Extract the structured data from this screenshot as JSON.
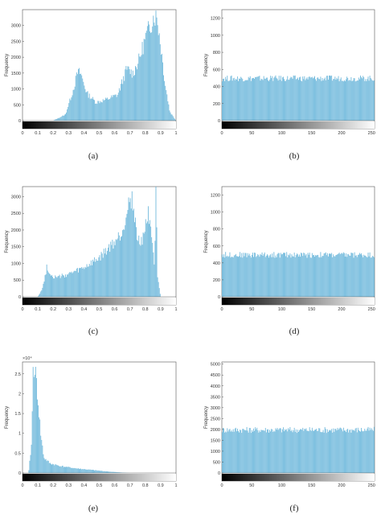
{
  "chart_data": [
    {
      "id": "a",
      "type": "bar",
      "caption": "(a)",
      "ylabel": "Frequency",
      "xlabel": "",
      "xlim": [
        0,
        1
      ],
      "ylim": [
        0,
        3500
      ],
      "xticks": [
        "0",
        "0.1",
        "0.2",
        "0.3",
        "0.4",
        "0.5",
        "0.6",
        "0.7",
        "0.8",
        "0.9",
        "1"
      ],
      "yticks": [
        "0",
        "500",
        "1000",
        "1500",
        "2000",
        "2500",
        "3000"
      ],
      "exponent": "",
      "colorbar": "black-to-white gradient",
      "bar_color": "#5aaed6",
      "series": [
        {
          "x": [
            0.0,
            0.2,
            0.28,
            0.33,
            0.36,
            0.38,
            0.42,
            0.48,
            0.55,
            0.62,
            0.68,
            0.72,
            0.76,
            0.8,
            0.83,
            0.86,
            0.88,
            0.9,
            0.93,
            0.96,
            1.0
          ],
          "values": [
            0,
            0,
            200,
            1000,
            1600,
            1550,
            900,
            600,
            700,
            850,
            1700,
            1550,
            2000,
            2700,
            3100,
            3500,
            3300,
            2500,
            1200,
            300,
            0
          ]
        }
      ]
    },
    {
      "id": "b",
      "type": "bar",
      "caption": "(b)",
      "ylabel": "Frequency",
      "xlabel": "",
      "xlim": [
        0,
        255
      ],
      "ylim": [
        0,
        1300
      ],
      "xticks": [
        "0",
        "50",
        "100",
        "150",
        "200",
        "250"
      ],
      "yticks": [
        "0",
        "200",
        "400",
        "600",
        "800",
        "1000",
        "1200"
      ],
      "exponent": "",
      "colorbar": "black-to-white gradient",
      "bar_color": "#5aaed6",
      "series": [
        {
          "x": [
            0,
            255
          ],
          "values": [
            500,
            500
          ]
        }
      ]
    },
    {
      "id": "c",
      "type": "bar",
      "caption": "(c)",
      "ylabel": "Frequency",
      "xlabel": "",
      "xlim": [
        0,
        1
      ],
      "ylim": [
        0,
        3300
      ],
      "xticks": [
        "0",
        "0.1",
        "0.2",
        "0.3",
        "0.4",
        "0.5",
        "0.6",
        "0.7",
        "0.8",
        "0.9",
        "1"
      ],
      "yticks": [
        "0",
        "500",
        "1000",
        "1500",
        "2000",
        "2500",
        "3000"
      ],
      "exponent": "",
      "colorbar": "black-to-white gradient",
      "bar_color": "#5aaed6",
      "series": [
        {
          "x": [
            0.0,
            0.1,
            0.13,
            0.16,
            0.18,
            0.22,
            0.3,
            0.4,
            0.5,
            0.6,
            0.65,
            0.69,
            0.71,
            0.73,
            0.75,
            0.78,
            0.82,
            0.84,
            0.86,
            0.87,
            0.88,
            0.9,
            1.0
          ],
          "values": [
            0,
            0,
            250,
            950,
            700,
            600,
            700,
            900,
            1200,
            1700,
            2000,
            2900,
            3100,
            2600,
            1700,
            1800,
            2600,
            2200,
            900,
            3300,
            600,
            0,
            0
          ]
        }
      ]
    },
    {
      "id": "d",
      "type": "bar",
      "caption": "(d)",
      "ylabel": "Frequency",
      "xlabel": "",
      "xlim": [
        0,
        255
      ],
      "ylim": [
        0,
        1300
      ],
      "xticks": [
        "0",
        "50",
        "100",
        "150",
        "200",
        "250"
      ],
      "yticks": [
        "0",
        "200",
        "400",
        "600",
        "800",
        "1000",
        "1200"
      ],
      "exponent": "",
      "colorbar": "black-to-white gradient",
      "bar_color": "#5aaed6",
      "series": [
        {
          "x": [
            0,
            255
          ],
          "values": [
            500,
            500
          ]
        }
      ]
    },
    {
      "id": "e",
      "type": "bar",
      "caption": "(e)",
      "ylabel": "Frequency",
      "xlabel": "",
      "xlim": [
        0,
        1
      ],
      "ylim": [
        0,
        2.8
      ],
      "xticks": [
        "0",
        "0.1",
        "0.2",
        "0.3",
        "0.4",
        "0.5",
        "0.6",
        "0.7",
        "0.8",
        "0.9",
        "1"
      ],
      "yticks": [
        "0",
        "0.5",
        "1",
        "1.5",
        "2",
        "2.5"
      ],
      "exponent": "×10⁴",
      "colorbar": "black-to-white gradient",
      "bar_color": "#5aaed6",
      "series": [
        {
          "x": [
            0.0,
            0.04,
            0.06,
            0.07,
            0.08,
            0.1,
            0.12,
            0.14,
            0.18,
            0.25,
            0.35,
            0.45,
            0.55,
            0.65,
            0.7,
            1.0
          ],
          "values": [
            0,
            0,
            0.8,
            2.8,
            2.8,
            2.0,
            1.0,
            0.4,
            0.25,
            0.18,
            0.12,
            0.08,
            0.04,
            0.01,
            0,
            0
          ]
        }
      ]
    },
    {
      "id": "f",
      "type": "bar",
      "caption": "(f)",
      "ylabel": "Frequency",
      "xlabel": "",
      "xlim": [
        0,
        255
      ],
      "ylim": [
        0,
        5100
      ],
      "xticks": [
        "0",
        "50",
        "100",
        "150",
        "200",
        "250"
      ],
      "yticks": [
        "0",
        "500",
        "1000",
        "1500",
        "2000",
        "2500",
        "3000",
        "3500",
        "4000",
        "4500",
        "5000"
      ],
      "exponent": "",
      "colorbar": "black-to-white gradient",
      "bar_color": "#5aaed6",
      "series": [
        {
          "x": [
            0,
            255
          ],
          "values": [
            2000,
            2000
          ]
        }
      ]
    }
  ]
}
